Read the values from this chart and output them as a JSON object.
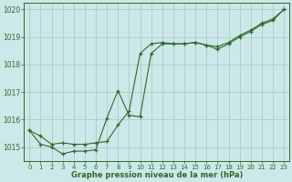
{
  "x": [
    0,
    1,
    2,
    3,
    4,
    5,
    6,
    7,
    8,
    9,
    10,
    11,
    12,
    13,
    14,
    15,
    16,
    17,
    18,
    19,
    20,
    21,
    22,
    23
  ],
  "line1": [
    1015.6,
    1015.4,
    1015.1,
    1015.15,
    1015.1,
    1015.1,
    1015.15,
    1015.2,
    1015.8,
    1016.3,
    1018.4,
    1018.75,
    1018.8,
    1018.75,
    1018.75,
    1018.8,
    1018.7,
    1018.65,
    1018.8,
    1019.05,
    1019.25,
    1019.5,
    1019.65,
    1020.0
  ],
  "line2": [
    1015.6,
    1015.1,
    1015.0,
    1014.75,
    1014.85,
    1014.85,
    1014.9,
    1016.05,
    1017.05,
    1016.15,
    1016.1,
    1018.4,
    1018.75,
    1018.75,
    1018.75,
    1018.8,
    1018.7,
    1018.55,
    1018.75,
    1019.0,
    1019.2,
    1019.45,
    1019.6,
    1020.0
  ],
  "line_color": "#2d6a2d",
  "bg_color": "#cce8e8",
  "grid_color": "#aacccc",
  "ylim": [
    1014.5,
    1020.25
  ],
  "yticks": [
    1015,
    1016,
    1017,
    1018,
    1019,
    1020
  ],
  "xticks": [
    0,
    1,
    2,
    3,
    4,
    5,
    6,
    7,
    8,
    9,
    10,
    11,
    12,
    13,
    14,
    15,
    16,
    17,
    18,
    19,
    20,
    21,
    22,
    23
  ],
  "xlabel": "Graphe pression niveau de la mer (hPa)",
  "marker": "+"
}
